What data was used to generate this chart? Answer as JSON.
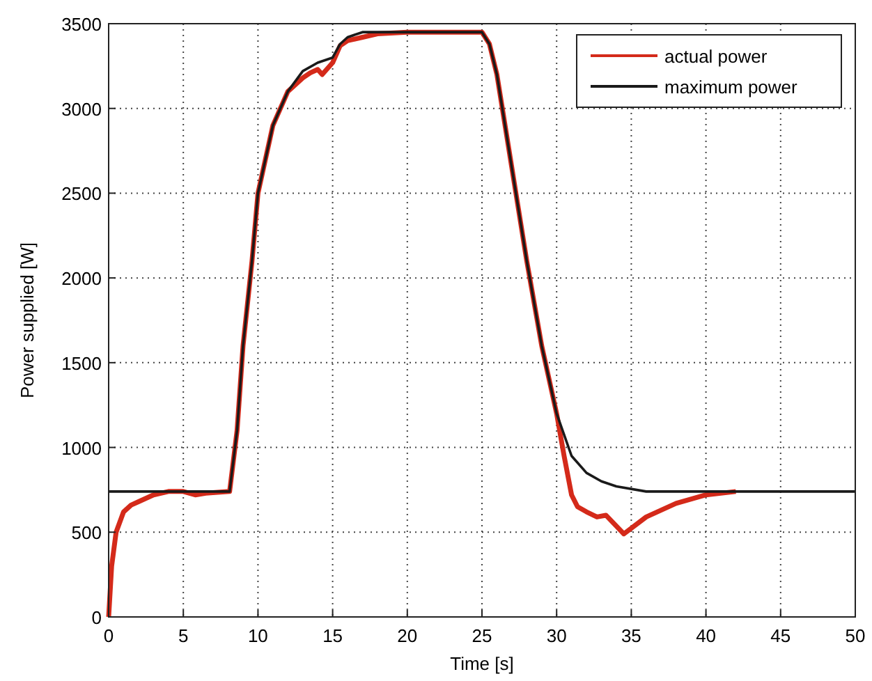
{
  "chart_data": {
    "type": "line",
    "xlabel": "Time [s]",
    "ylabel": "Power supplied [W]",
    "xlim": [
      0,
      50
    ],
    "ylim": [
      0,
      3500
    ],
    "xticks": [
      0,
      5,
      10,
      15,
      20,
      25,
      30,
      35,
      40,
      45,
      50
    ],
    "yticks": [
      0,
      500,
      1000,
      1500,
      2000,
      2500,
      3000,
      3500
    ],
    "grid": true,
    "legend": "top right",
    "line_style": "solid",
    "series": [
      {
        "name": "actual power",
        "color": "#d42a1a",
        "x": [
          0,
          0.2,
          0.5,
          1,
          1.5,
          2,
          3,
          4,
          5,
          5.8,
          6.5,
          8.1,
          8.6,
          9,
          9.6,
          10,
          11,
          12,
          13,
          13.5,
          14,
          14.3,
          15,
          15.5,
          16,
          17,
          18,
          20,
          25,
          25.5,
          26,
          27,
          28,
          29,
          30,
          30.5,
          31,
          31.4,
          32,
          32.7,
          33.3,
          34.5,
          36,
          38,
          40,
          42
        ],
        "values": [
          0,
          300,
          500,
          620,
          660,
          680,
          720,
          740,
          740,
          720,
          730,
          740,
          1100,
          1600,
          2100,
          2500,
          2900,
          3100,
          3180,
          3210,
          3230,
          3200,
          3270,
          3370,
          3400,
          3420,
          3440,
          3450,
          3450,
          3380,
          3200,
          2650,
          2100,
          1600,
          1200,
          950,
          720,
          650,
          620,
          590,
          600,
          490,
          590,
          670,
          720,
          740
        ]
      },
      {
        "name": "maximum power",
        "color": "#1a1a1a",
        "x": [
          0,
          8.1,
          8.6,
          9,
          9.6,
          10,
          11,
          12,
          13,
          14,
          15,
          15.5,
          16,
          17,
          25,
          25.5,
          26,
          27,
          28,
          29,
          30,
          31,
          32,
          33,
          34,
          36,
          38,
          50
        ],
        "values": [
          740,
          740,
          1100,
          1600,
          2100,
          2500,
          2900,
          3100,
          3220,
          3270,
          3300,
          3380,
          3420,
          3450,
          3450,
          3380,
          3200,
          2650,
          2100,
          1600,
          1200,
          950,
          850,
          800,
          770,
          740,
          740,
          740
        ]
      }
    ]
  }
}
